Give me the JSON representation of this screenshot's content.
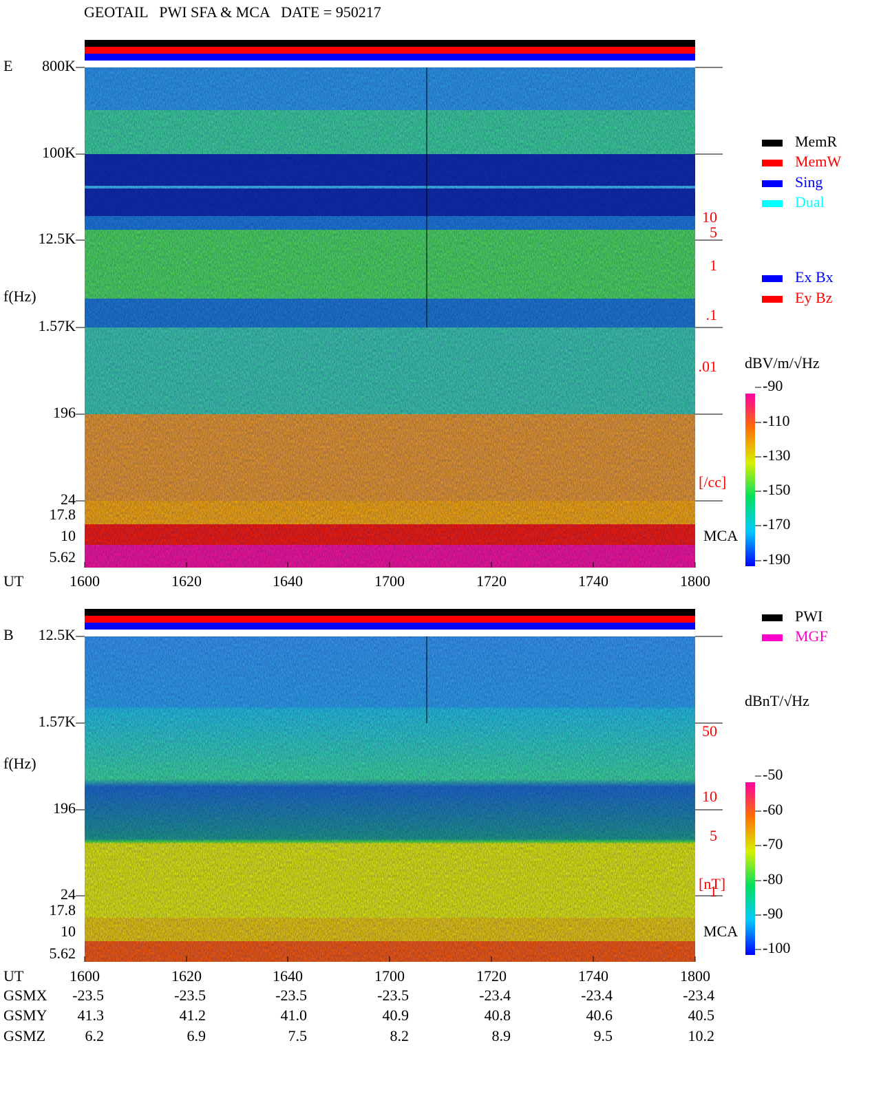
{
  "header": {
    "title": "GEOTAIL   PWI SFA & MCA   DATE = 950217"
  },
  "panels": [
    {
      "label": "E",
      "freq_axis_title": "f(Hz)",
      "freq_labels": [
        "800K",
        "100K",
        "12.5K",
        "1.57K",
        "196",
        "24",
        "17.8",
        "10",
        "5.62"
      ],
      "density_labels": [
        "10",
        "5",
        "1",
        ".1",
        ".01"
      ],
      "density_unit": "[/cc]",
      "mca_label": "MCA",
      "legend": [
        "MemR",
        "MemW",
        "Sing",
        "Dual",
        "Ex Bx",
        "Ey Bz"
      ],
      "colorbar_title": "dBV/m/√Hz",
      "colorbar_ticks": [
        "-90",
        "-110",
        "-130",
        "-150",
        "-170",
        "-190"
      ],
      "time_label": "UT",
      "time_ticks": [
        "1600",
        "1620",
        "1640",
        "1700",
        "1720",
        "1740",
        "1800"
      ]
    },
    {
      "label": "B",
      "freq_axis_title": "f(Hz)",
      "freq_labels": [
        "12.5K",
        "1.57K",
        "196",
        "24",
        "17.8",
        "10",
        "5.62"
      ],
      "density_labels": [
        "50",
        "10",
        "5",
        "1"
      ],
      "density_unit": "[nT]",
      "mca_label": "MCA",
      "legend": [
        "PWI",
        "MGF"
      ],
      "colorbar_title": "dBnT/√Hz",
      "colorbar_ticks": [
        "-50",
        "-60",
        "-70",
        "-80",
        "-90",
        "-100"
      ],
      "time_label": "UT",
      "time_ticks": [
        "1600",
        "1620",
        "1640",
        "1700",
        "1720",
        "1740",
        "1800"
      ]
    }
  ],
  "orbit": {
    "rows": [
      {
        "label": "GSMX",
        "values": [
          "-23.5",
          "-23.5",
          "-23.5",
          "-23.5",
          "-23.4",
          "-23.4",
          "-23.4"
        ]
      },
      {
        "label": "GSMY",
        "values": [
          "41.3",
          "41.2",
          "41.0",
          "40.9",
          "40.8",
          "40.6",
          "40.5"
        ]
      },
      {
        "label": "GSMZ",
        "values": [
          "6.2",
          "6.9",
          "7.5",
          "8.2",
          "8.9",
          "9.5",
          "10.2"
        ]
      }
    ]
  }
}
